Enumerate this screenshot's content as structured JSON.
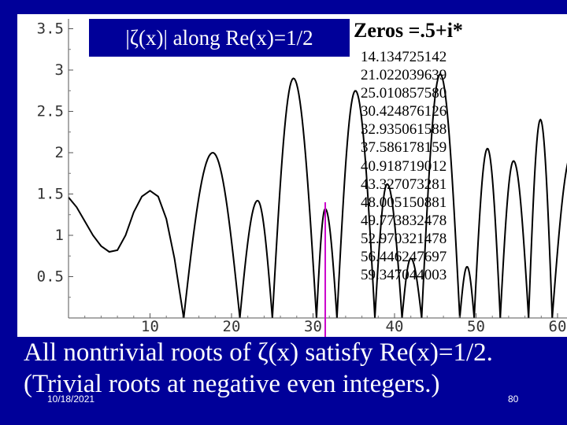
{
  "slide": {
    "statement_line1": "All nontrivial roots of ζ(x) satisfy Re(x)=1/2.",
    "statement_line2": "(Trivial roots at negative even integers.)",
    "date": "10/18/2021",
    "page_number": "80"
  },
  "colors": {
    "slide_background": "#000099",
    "plot_background": "#ffffff",
    "curve": "#000000",
    "marker": "#cc00cc",
    "text_on_dark": "#ffffff"
  },
  "chart_data": {
    "type": "line",
    "title": "|ζ(x)| along Re(x)=1/2",
    "xlabel": "",
    "ylabel": "",
    "xlim": [
      0,
      63
    ],
    "ylim": [
      0,
      3.6
    ],
    "x_ticks": [
      "10",
      "20",
      "30",
      "40",
      "50",
      "60"
    ],
    "y_ticks": [
      "0.5",
      "1",
      "1.5",
      "2",
      "2.5",
      "3",
      "3.5"
    ],
    "grid": false,
    "marker_line_x": 31.5,
    "zeros_heading": "Zeros =.5+i*",
    "zeros": [
      "14.134725142",
      "21.022039639",
      "25.010857580",
      "30.424876126",
      "32.935061588",
      "37.586178159",
      "40.918719012",
      "43.327073281",
      "48.005150881",
      "49.773832478",
      "52.970321478",
      "56.446247697",
      "59.347044003"
    ],
    "series": [
      {
        "segments": [
          {
            "from": 0,
            "to": 14.134725142,
            "points": [
              [
                0,
                1.46
              ],
              [
                1,
                1.34
              ],
              [
                2,
                1.17
              ],
              [
                3,
                1.0
              ],
              [
                4,
                0.87
              ],
              [
                5,
                0.8
              ],
              [
                6,
                0.82
              ],
              [
                7,
                1.0
              ],
              [
                8,
                1.28
              ],
              [
                9,
                1.47
              ],
              [
                10,
                1.54
              ],
              [
                11,
                1.47
              ],
              [
                12,
                1.2
              ],
              [
                13,
                0.72
              ],
              [
                14.134725142,
                0
              ]
            ]
          },
          {
            "from": 14.134725142,
            "to": 21.022039639,
            "peak": 2.0,
            "peak_at": 17.7
          },
          {
            "from": 21.022039639,
            "to": 25.01085758,
            "peak": 1.42,
            "peak_at": 23.2
          },
          {
            "from": 25.01085758,
            "to": 30.424876126,
            "peak": 2.9,
            "peak_at": 27.6
          },
          {
            "from": 30.424876126,
            "to": 32.935061588,
            "peak": 1.32,
            "peak_at": 31.5
          },
          {
            "from": 32.935061588,
            "to": 37.586178159,
            "peak": 2.75,
            "peak_at": 35.2
          },
          {
            "from": 37.586178159,
            "to": 40.918719012,
            "peak": 1.62,
            "peak_at": 39.1
          },
          {
            "from": 40.918719012,
            "to": 43.327073281,
            "peak": 0.72,
            "peak_at": 42.0
          },
          {
            "from": 43.327073281,
            "to": 48.005150881,
            "peak": 2.95,
            "peak_at": 45.6
          },
          {
            "from": 48.005150881,
            "to": 49.773832478,
            "peak": 0.62,
            "peak_at": 48.9
          },
          {
            "from": 49.773832478,
            "to": 52.970321478,
            "peak": 2.05,
            "peak_at": 51.4
          },
          {
            "from": 52.970321478,
            "to": 56.446247697,
            "peak": 1.9,
            "peak_at": 54.6
          },
          {
            "from": 56.446247697,
            "to": 59.347044003,
            "peak": 2.4,
            "peak_at": 57.9
          },
          {
            "from": 59.347044003,
            "to": 63,
            "peak": 2.0,
            "peak_at": 61.8
          }
        ]
      }
    ]
  }
}
